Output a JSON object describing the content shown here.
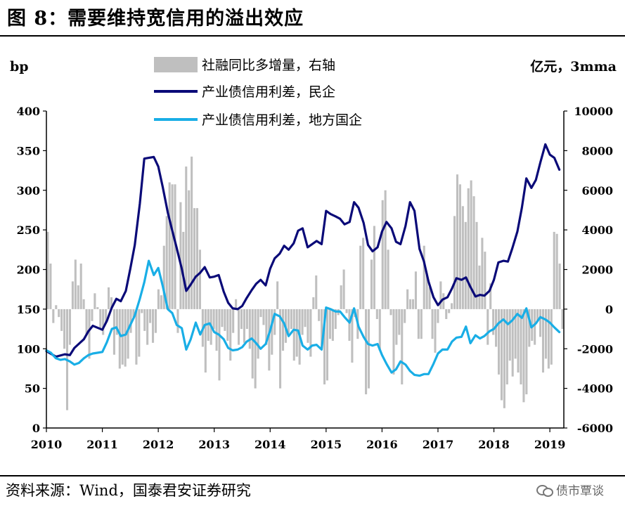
{
  "header": {
    "title": "图 8：需要维持宽信用的溢出效应"
  },
  "footer": {
    "source": "资料来源：Wind，国泰君安证券研究",
    "watermark": "债市覃谈"
  },
  "chart_data": {
    "type": "line",
    "left_unit": "bp",
    "right_unit": "亿元，3mma",
    "left_ylim": [
      0,
      400
    ],
    "left_ticks": [
      "0",
      "50",
      "100",
      "150",
      "200",
      "250",
      "300",
      "350",
      "400"
    ],
    "right_ylim": [
      -6000,
      10000
    ],
    "right_ticks": [
      "-6000",
      "-4000",
      "-2000",
      "0",
      "2000",
      "4000",
      "6000",
      "8000",
      "10000"
    ],
    "x_ticks": [
      "2010",
      "2011",
      "2012",
      "2013",
      "2014",
      "2015",
      "2016",
      "2017",
      "2018",
      "2019"
    ],
    "x_start": 2010.0,
    "x_end": 2019.25,
    "grid": false,
    "colors": {
      "bars": "#bfbfbf",
      "private": "#0a0a78",
      "local_soe": "#19aee6"
    },
    "series": [
      {
        "name": "社融同比多增量，右轴",
        "kind": "bar",
        "axis": "right",
        "values": [
          3900,
          2300,
          -700,
          200,
          -400,
          -1100,
          -2000,
          -5100,
          -1800,
          1400,
          2500,
          1200,
          2300,
          500,
          -1300,
          -2500,
          -600,
          800,
          100,
          -1000,
          -1300,
          -700,
          1100,
          600,
          -2300,
          -1300,
          -3000,
          -2800,
          -2900,
          -2500,
          -1200,
          -400,
          -2800,
          -2400,
          -200,
          -1100,
          -1800,
          -700,
          -1700,
          -1200,
          1000,
          700,
          3200,
          4700,
          6400,
          6300,
          6300,
          -1200,
          5400,
          3900,
          7200,
          6000,
          7700,
          5100,
          5100,
          3000,
          -1900,
          -3200,
          -1600,
          -1800,
          -1000,
          -2100,
          -3600,
          -900,
          -1100,
          -1600,
          -2600,
          -1200,
          500,
          -1800,
          -1000,
          -1700,
          -1000,
          -2000,
          -3500,
          -4000,
          -2500,
          -400,
          -800,
          -1800,
          -3100,
          -2300,
          -1300,
          1400,
          -4000,
          -2100,
          -1700,
          -1200,
          -1000,
          -2600,
          -2400,
          -2800,
          -1300,
          -900,
          -1700,
          -2400,
          600,
          1700,
          -600,
          -2000,
          -3800,
          -3600,
          -1500,
          -1600,
          -1000,
          -300,
          1200,
          2000,
          -200,
          -1600,
          -2700,
          -400,
          -1500,
          3200,
          3600,
          -4300,
          -4000,
          2500,
          4200,
          -500,
          -2100,
          5500,
          6000,
          3000,
          -300,
          -3300,
          -1800,
          -1300,
          -3800,
          -700,
          1000,
          500,
          500,
          1900,
          -1500,
          -1500,
          3200,
          1800,
          1100,
          -1500,
          -2200,
          -700,
          1400,
          800,
          -500,
          -200,
          300,
          4700,
          6800,
          6300,
          5200,
          4400,
          6100,
          6500,
          5700,
          4400,
          2200,
          3600,
          2900,
          -1800,
          1300,
          -1300,
          -1900,
          -3300,
          -4600,
          -5000,
          -3800,
          -2600,
          -3400,
          -2500,
          -3200,
          -3800,
          -4700,
          -4300,
          -1900,
          -1600,
          -1800,
          -600,
          -1400,
          -3200,
          -2500,
          -3000,
          -2800,
          3900,
          3800,
          2300,
          -1000
        ]
      },
      {
        "name": "产业债信用利差，民企",
        "kind": "line",
        "axis": "left",
        "points": [
          [
            2010.0,
            97
          ],
          [
            2010.17,
            90
          ],
          [
            2010.33,
            93
          ],
          [
            2010.42,
            92
          ],
          [
            2010.5,
            101
          ],
          [
            2010.67,
            112
          ],
          [
            2010.75,
            122
          ],
          [
            2010.83,
            129
          ],
          [
            2011.0,
            124
          ],
          [
            2011.08,
            135
          ],
          [
            2011.17,
            152
          ],
          [
            2011.25,
            163
          ],
          [
            2011.33,
            160
          ],
          [
            2011.42,
            173
          ],
          [
            2011.5,
            201
          ],
          [
            2011.58,
            231
          ],
          [
            2011.67,
            283
          ],
          [
            2011.75,
            340
          ],
          [
            2011.83,
            341
          ],
          [
            2011.92,
            342
          ],
          [
            2012.0,
            330
          ],
          [
            2012.08,
            304
          ],
          [
            2012.17,
            272
          ],
          [
            2012.25,
            249
          ],
          [
            2012.33,
            227
          ],
          [
            2012.42,
            201
          ],
          [
            2012.5,
            173
          ],
          [
            2012.58,
            181
          ],
          [
            2012.67,
            191
          ],
          [
            2012.75,
            196
          ],
          [
            2012.83,
            203
          ],
          [
            2012.92,
            190
          ],
          [
            2013.0,
            191
          ],
          [
            2013.08,
            193
          ],
          [
            2013.17,
            172
          ],
          [
            2013.25,
            158
          ],
          [
            2013.33,
            151
          ],
          [
            2013.42,
            150
          ],
          [
            2013.5,
            154
          ],
          [
            2013.58,
            164
          ],
          [
            2013.67,
            174
          ],
          [
            2013.75,
            182
          ],
          [
            2013.83,
            187
          ],
          [
            2013.92,
            180
          ],
          [
            2014.0,
            201
          ],
          [
            2014.08,
            214
          ],
          [
            2014.17,
            220
          ],
          [
            2014.25,
            230
          ],
          [
            2014.33,
            225
          ],
          [
            2014.42,
            233
          ],
          [
            2014.5,
            249
          ],
          [
            2014.58,
            252
          ],
          [
            2014.67,
            228
          ],
          [
            2014.75,
            232
          ],
          [
            2014.83,
            236
          ],
          [
            2014.92,
            232
          ],
          [
            2015.0,
            274
          ],
          [
            2015.08,
            270
          ],
          [
            2015.17,
            267
          ],
          [
            2015.25,
            264
          ],
          [
            2015.33,
            257
          ],
          [
            2015.42,
            260
          ],
          [
            2015.5,
            285
          ],
          [
            2015.58,
            278
          ],
          [
            2015.67,
            259
          ],
          [
            2015.75,
            231
          ],
          [
            2015.83,
            223
          ],
          [
            2015.92,
            228
          ],
          [
            2016.0,
            248
          ],
          [
            2016.08,
            260
          ],
          [
            2016.17,
            252
          ],
          [
            2016.25,
            235
          ],
          [
            2016.33,
            232
          ],
          [
            2016.42,
            255
          ],
          [
            2016.5,
            285
          ],
          [
            2016.58,
            274
          ],
          [
            2016.67,
            226
          ],
          [
            2016.75,
            210
          ],
          [
            2016.83,
            185
          ],
          [
            2016.92,
            165
          ],
          [
            2017.0,
            155
          ],
          [
            2017.08,
            162
          ],
          [
            2017.17,
            165
          ],
          [
            2017.25,
            176
          ],
          [
            2017.33,
            189
          ],
          [
            2017.42,
            187
          ],
          [
            2017.5,
            190
          ],
          [
            2017.58,
            178
          ],
          [
            2017.67,
            166
          ],
          [
            2017.75,
            168
          ],
          [
            2017.83,
            167
          ],
          [
            2017.92,
            173
          ],
          [
            2018.0,
            187
          ],
          [
            2018.08,
            209
          ],
          [
            2018.17,
            211
          ],
          [
            2018.25,
            210
          ],
          [
            2018.33,
            227
          ],
          [
            2018.42,
            248
          ],
          [
            2018.5,
            278
          ],
          [
            2018.58,
            315
          ],
          [
            2018.67,
            303
          ],
          [
            2018.75,
            313
          ],
          [
            2018.83,
            335
          ],
          [
            2018.92,
            358
          ],
          [
            2019.0,
            345
          ],
          [
            2019.08,
            341
          ],
          [
            2019.17,
            326
          ]
        ]
      },
      {
        "name": "产业债信用利差，地方国企",
        "kind": "line",
        "axis": "left",
        "points": [
          [
            2010.0,
            98
          ],
          [
            2010.08,
            95
          ],
          [
            2010.17,
            88
          ],
          [
            2010.25,
            86
          ],
          [
            2010.33,
            87
          ],
          [
            2010.42,
            84
          ],
          [
            2010.5,
            80
          ],
          [
            2010.58,
            82
          ],
          [
            2010.67,
            88
          ],
          [
            2010.75,
            92
          ],
          [
            2010.83,
            94
          ],
          [
            2010.92,
            95
          ],
          [
            2011.0,
            96
          ],
          [
            2011.08,
            108
          ],
          [
            2011.17,
            125
          ],
          [
            2011.25,
            127
          ],
          [
            2011.33,
            116
          ],
          [
            2011.42,
            118
          ],
          [
            2011.5,
            130
          ],
          [
            2011.58,
            142
          ],
          [
            2011.67,
            163
          ],
          [
            2011.75,
            184
          ],
          [
            2011.83,
            211
          ],
          [
            2011.92,
            193
          ],
          [
            2012.0,
            202
          ],
          [
            2012.08,
            179
          ],
          [
            2012.17,
            150
          ],
          [
            2012.25,
            145
          ],
          [
            2012.33,
            130
          ],
          [
            2012.42,
            126
          ],
          [
            2012.5,
            99
          ],
          [
            2012.58,
            112
          ],
          [
            2012.67,
            133
          ],
          [
            2012.75,
            118
          ],
          [
            2012.83,
            130
          ],
          [
            2012.92,
            132
          ],
          [
            2013.0,
            121
          ],
          [
            2013.08,
            118
          ],
          [
            2013.17,
            112
          ],
          [
            2013.25,
            101
          ],
          [
            2013.33,
            98
          ],
          [
            2013.42,
            99
          ],
          [
            2013.5,
            102
          ],
          [
            2013.58,
            109
          ],
          [
            2013.67,
            113
          ],
          [
            2013.75,
            107
          ],
          [
            2013.83,
            100
          ],
          [
            2013.92,
            106
          ],
          [
            2014.0,
            123
          ],
          [
            2014.08,
            144
          ],
          [
            2014.17,
            141
          ],
          [
            2014.25,
            132
          ],
          [
            2014.33,
            116
          ],
          [
            2014.42,
            124
          ],
          [
            2014.5,
            123
          ],
          [
            2014.58,
            104
          ],
          [
            2014.67,
            99
          ],
          [
            2014.75,
            104
          ],
          [
            2014.83,
            105
          ],
          [
            2014.92,
            99
          ],
          [
            2015.0,
            152
          ],
          [
            2015.08,
            150
          ],
          [
            2015.17,
            147
          ],
          [
            2015.25,
            147
          ],
          [
            2015.33,
            140
          ],
          [
            2015.42,
            133
          ],
          [
            2015.5,
            151
          ],
          [
            2015.58,
            128
          ],
          [
            2015.67,
            115
          ],
          [
            2015.75,
            106
          ],
          [
            2015.83,
            104
          ],
          [
            2015.92,
            106
          ],
          [
            2016.0,
            92
          ],
          [
            2016.08,
            81
          ],
          [
            2016.17,
            70
          ],
          [
            2016.25,
            74
          ],
          [
            2016.33,
            84
          ],
          [
            2016.42,
            80
          ],
          [
            2016.5,
            72
          ],
          [
            2016.58,
            67
          ],
          [
            2016.67,
            66
          ],
          [
            2016.75,
            68
          ],
          [
            2016.83,
            68
          ],
          [
            2016.92,
            81
          ],
          [
            2017.0,
            94
          ],
          [
            2017.08,
            99
          ],
          [
            2017.17,
            99
          ],
          [
            2017.25,
            109
          ],
          [
            2017.33,
            114
          ],
          [
            2017.42,
            115
          ],
          [
            2017.5,
            128
          ],
          [
            2017.58,
            107
          ],
          [
            2017.67,
            117
          ],
          [
            2017.75,
            113
          ],
          [
            2017.83,
            116
          ],
          [
            2017.92,
            122
          ],
          [
            2018.0,
            125
          ],
          [
            2018.08,
            132
          ],
          [
            2018.17,
            137
          ],
          [
            2018.25,
            131
          ],
          [
            2018.33,
            136
          ],
          [
            2018.42,
            144
          ],
          [
            2018.5,
            139
          ],
          [
            2018.58,
            151
          ],
          [
            2018.67,
            127
          ],
          [
            2018.75,
            132
          ],
          [
            2018.83,
            140
          ],
          [
            2018.92,
            137
          ],
          [
            2019.0,
            133
          ],
          [
            2019.08,
            127
          ],
          [
            2019.17,
            121
          ]
        ]
      }
    ]
  }
}
